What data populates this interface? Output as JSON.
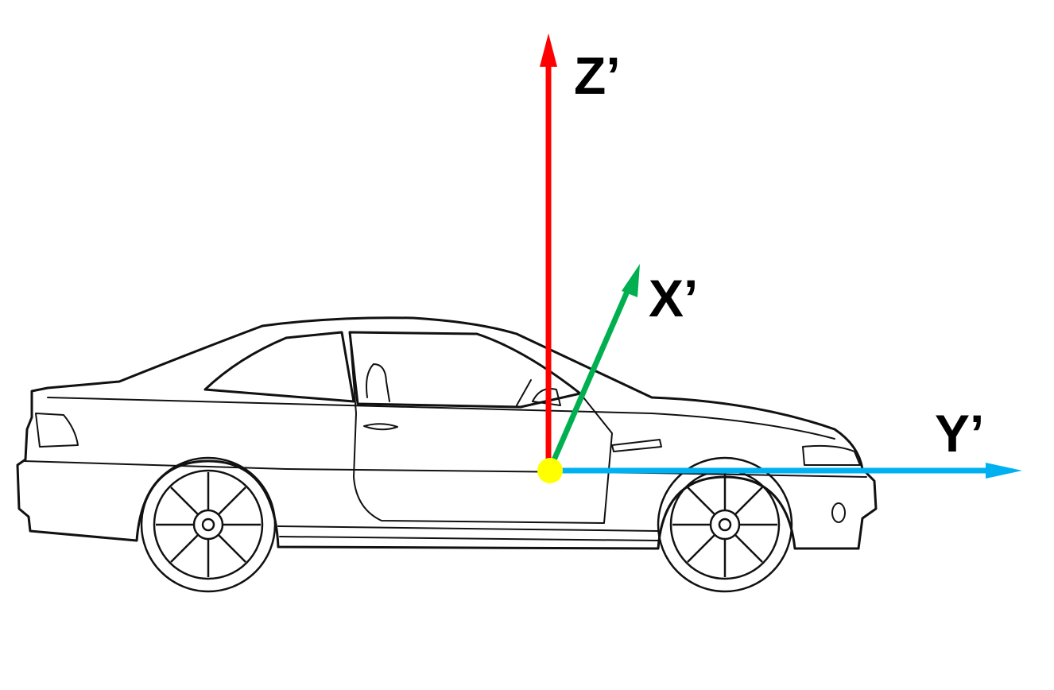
{
  "axes": {
    "z": {
      "label": "Z’",
      "color": "#ff0000"
    },
    "x": {
      "label": "X’",
      "color": "#00b050"
    },
    "y": {
      "label": "Y’",
      "color": "#00b0f0"
    }
  },
  "origin": {
    "color": "#ffff00"
  },
  "car": {
    "outline_color": "#111111"
  }
}
